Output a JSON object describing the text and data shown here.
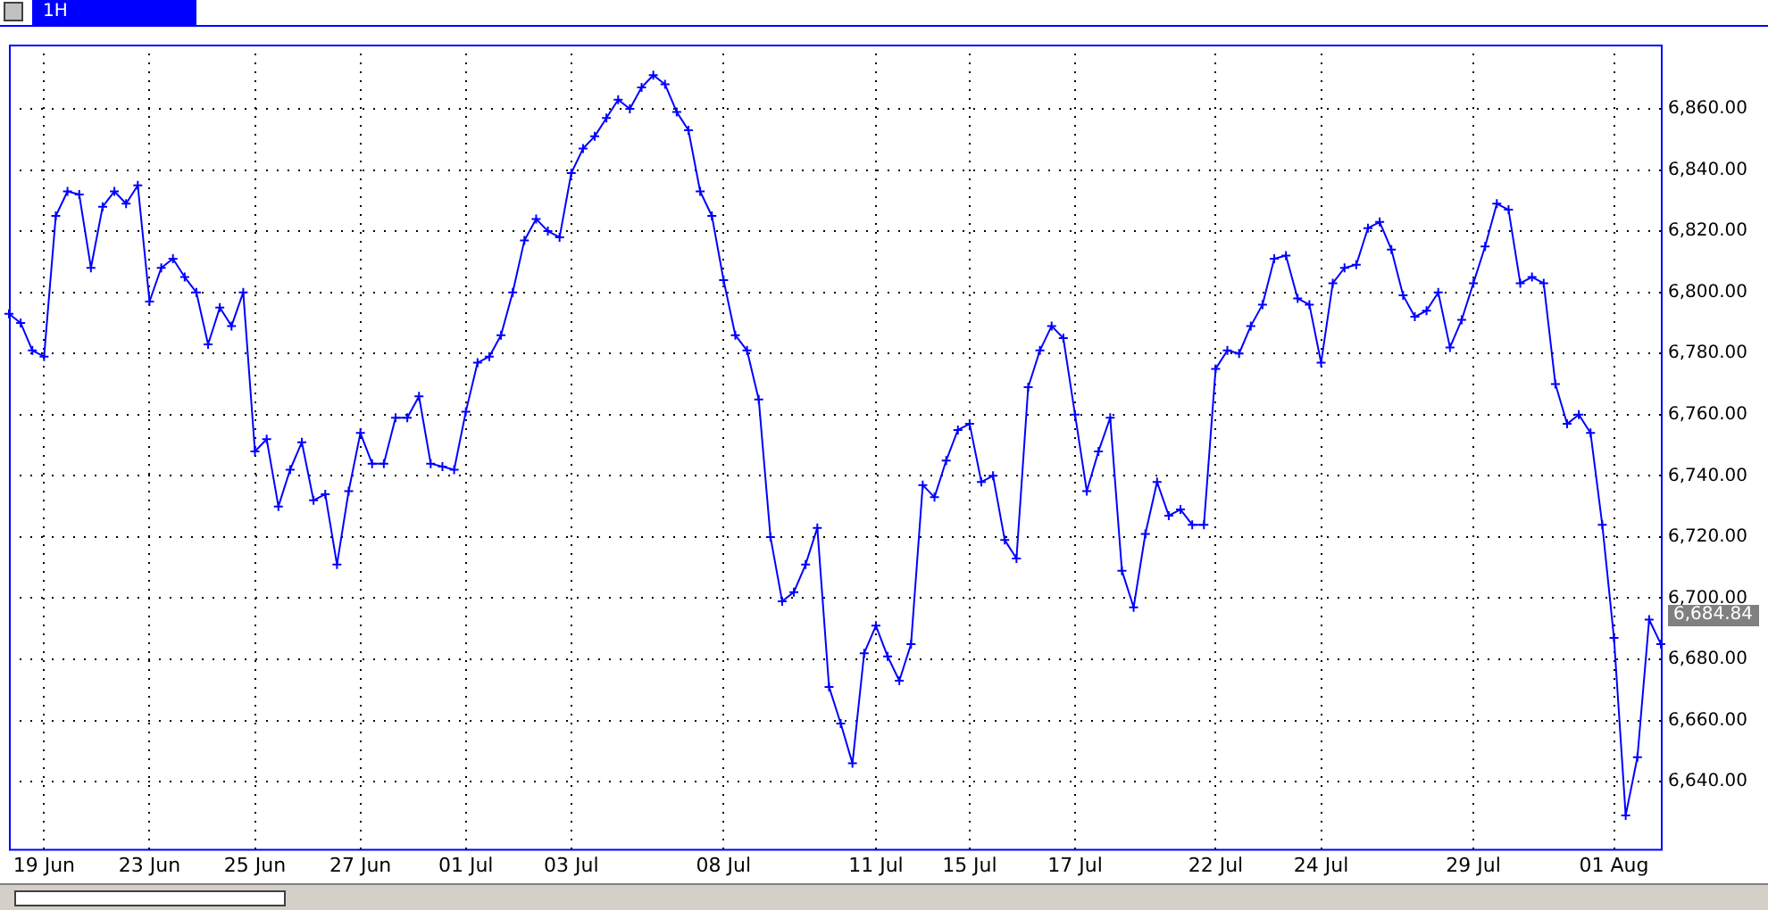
{
  "chart_data": {
    "type": "line",
    "title": "1H",
    "categories": [
      null,
      null,
      null,
      "19 Jun",
      null,
      null,
      null,
      null,
      null,
      null,
      null,
      null,
      "23 Jun",
      null,
      null,
      null,
      null,
      null,
      null,
      null,
      null,
      "25 Jun",
      null,
      null,
      null,
      null,
      null,
      null,
      null,
      null,
      "27 Jun",
      null,
      null,
      null,
      null,
      null,
      null,
      null,
      null,
      "01 Jul",
      null,
      null,
      null,
      null,
      null,
      null,
      null,
      null,
      "03 Jul",
      null,
      null,
      null,
      null,
      null,
      null,
      null,
      null,
      null,
      null,
      null,
      null,
      "08 Jul",
      null,
      null,
      null,
      null,
      null,
      null,
      null,
      null,
      null,
      null,
      null,
      null,
      "11 Jul",
      null,
      null,
      null,
      null,
      null,
      null,
      null,
      "15 Jul",
      null,
      null,
      null,
      null,
      null,
      null,
      null,
      null,
      "17 Jul",
      null,
      null,
      null,
      null,
      null,
      null,
      null,
      null,
      null,
      null,
      null,
      "22 Jul",
      null,
      null,
      null,
      null,
      null,
      null,
      null,
      null,
      "24 Jul",
      null,
      null,
      null,
      null,
      null,
      null,
      null,
      null,
      null,
      null,
      null,
      null,
      "29 Jul",
      null,
      null,
      null,
      null,
      null,
      null,
      null,
      null,
      null,
      null,
      null,
      "01 Aug",
      null,
      null,
      null,
      null
    ],
    "series": [
      {
        "color": "#0000ff",
        "values": [
          6793,
          6790,
          6781,
          6779,
          6825,
          6833,
          6832,
          6808,
          6828,
          6833,
          6829,
          6835,
          6797,
          6808,
          6811,
          6805,
          6800,
          6783,
          6795,
          6789,
          6800,
          6748,
          6752,
          6730,
          6742,
          6751,
          6732,
          6734,
          6711,
          6735,
          6754,
          6744,
          6744,
          6759,
          6759,
          6766,
          6744,
          6743,
          6742,
          6761,
          6777,
          6779,
          6786,
          6800,
          6817,
          6824,
          6820,
          6818,
          6839,
          6847,
          6851,
          6857,
          6863,
          6860,
          6867,
          6871,
          6868,
          6859,
          6853,
          6833,
          6825,
          6804,
          6786,
          6781,
          6765,
          6720,
          6699,
          6702,
          6711,
          6723,
          6671,
          6659,
          6646,
          6682,
          6691,
          6681,
          6673,
          6685,
          6737,
          6733,
          6745,
          6755,
          6757,
          6738,
          6740,
          6719,
          6713,
          6769,
          6781,
          6789,
          6785,
          6760,
          6735,
          6748,
          6759,
          6709,
          6697,
          6721,
          6738,
          6727,
          6729,
          6724,
          6724,
          6775,
          6781,
          6780,
          6789,
          6796,
          6811,
          6812,
          6798,
          6796,
          6777,
          6803,
          6808,
          6809,
          6821,
          6823,
          6814,
          6799,
          6792,
          6794,
          6800,
          6782,
          6791,
          6803,
          6815,
          6829,
          6827,
          6803,
          6805,
          6803,
          6770,
          6757,
          6760,
          6754,
          6724,
          6687,
          6629,
          6648,
          6693,
          6685
        ]
      }
    ],
    "ylim": [
      6618,
      6881
    ],
    "yticks": [
      {
        "value": 6640,
        "label": "6,640.00"
      },
      {
        "value": 6660,
        "label": "6,660.00"
      },
      {
        "value": 6680,
        "label": "6,680.00"
      },
      {
        "value": 6700,
        "label": "6,700.00"
      },
      {
        "value": 6720,
        "label": "6,720.00"
      },
      {
        "value": 6740,
        "label": "6,740.00"
      },
      {
        "value": 6760,
        "label": "6,760.00"
      },
      {
        "value": 6780,
        "label": "6,780.00"
      },
      {
        "value": 6800,
        "label": "6,800.00"
      },
      {
        "value": 6820,
        "label": "6,820.00"
      },
      {
        "value": 6840,
        "label": "6,840.00"
      },
      {
        "value": 6860,
        "label": "6,860.00"
      }
    ],
    "annotations": [
      "6,684.84"
    ],
    "grid": true,
    "marker": "cross",
    "line_style": "solid"
  }
}
